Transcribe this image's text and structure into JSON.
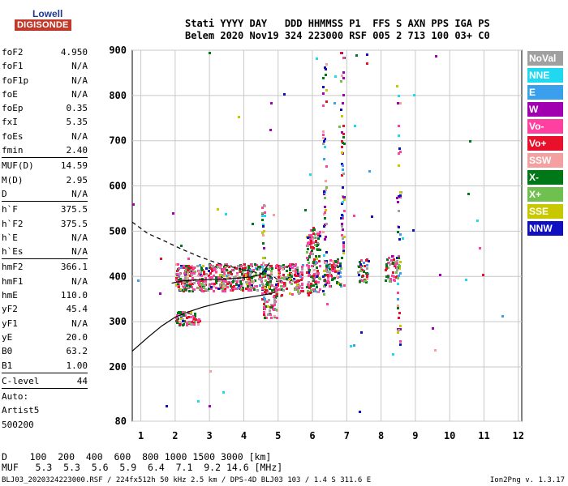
{
  "logo": {
    "brand": "Lowell",
    "sub": "DIGISONDE"
  },
  "header": {
    "line1": "Stati YYYY DAY   DDD HHMMSS P1  FFS S AXN PPS IGA PS",
    "line2": "Belem 2020 Nov19 324 223000 RSF 005 2 713 100 03+ C0"
  },
  "params": {
    "group1": [
      {
        "label": "foF2",
        "value": "4.950"
      },
      {
        "label": "foF1",
        "value": "N/A"
      },
      {
        "label": "foF1p",
        "value": "N/A"
      },
      {
        "label": "foE",
        "value": "N/A"
      },
      {
        "label": "foEp",
        "value": "0.35"
      },
      {
        "label": "fxI",
        "value": "5.35"
      },
      {
        "label": "foEs",
        "value": "N/A"
      },
      {
        "label": "fmin",
        "value": "2.40"
      }
    ],
    "group2": [
      {
        "label": "MUF(D)",
        "value": "14.59"
      },
      {
        "label": "M(D)",
        "value": "2.95"
      },
      {
        "label": "D",
        "value": "N/A"
      }
    ],
    "group3": [
      {
        "label": "h`F",
        "value": "375.5"
      },
      {
        "label": "h`F2",
        "value": "375.5"
      },
      {
        "label": "h`E",
        "value": "N/A"
      },
      {
        "label": "h`Es",
        "value": "N/A"
      }
    ],
    "group4": [
      {
        "label": "hmF2",
        "value": "366.1"
      },
      {
        "label": "hmF1",
        "value": "N/A"
      },
      {
        "label": "hmE",
        "value": "110.0"
      },
      {
        "label": "yF2",
        "value": "45.4"
      },
      {
        "label": "yF1",
        "value": "N/A"
      },
      {
        "label": "yE",
        "value": "20.0"
      },
      {
        "label": "B0",
        "value": "63.2"
      },
      {
        "label": "B1",
        "value": "1.00"
      }
    ],
    "group5": [
      {
        "label": "C-level",
        "value": "44"
      }
    ],
    "group6": [
      "Auto:",
      "Artist5",
      "500200"
    ]
  },
  "legend": [
    {
      "label": "NoVal",
      "color": "#a0a0a0"
    },
    {
      "label": "NNE",
      "color": "#20d8f0"
    },
    {
      "label": "E",
      "color": "#3aa0ee"
    },
    {
      "label": "W",
      "color": "#a000b0"
    },
    {
      "label": "Vo-",
      "color": "#ff40a0"
    },
    {
      "label": "Vo+",
      "color": "#e8102a"
    },
    {
      "label": "SSW",
      "color": "#f4a0a0"
    },
    {
      "label": "X-",
      "color": "#007818"
    },
    {
      "label": "X+",
      "color": "#70c050"
    },
    {
      "label": "SSE",
      "color": "#c8c800"
    },
    {
      "label": "NNW",
      "color": "#1010c0"
    }
  ],
  "footer": {
    "line1": "D    100  200  400  600  800 1000 1500 3000 [km]",
    "line2": "MUF   5.3  5.3  5.6  5.9  6.4  7.1  9.2 14.6 [MHz]",
    "file": "BLJ03_2020324223000.RSF / 224fx512h 50 kHz 2.5 km / DPS-4D BLJ03 103 / 1.4 S 311.6 E",
    "version": "Ion2Png v. 1.3.17"
  },
  "chart_data": {
    "type": "scatter",
    "x_ticks": [
      1,
      2,
      3,
      4,
      5,
      6,
      7,
      8,
      9,
      10,
      11,
      12
    ],
    "y_ticks": [
      80,
      200,
      300,
      400,
      500,
      600,
      700,
      800,
      900
    ],
    "xlim": [
      0.75,
      12.1
    ],
    "ylim": [
      80,
      900
    ],
    "grid": true,
    "traces": [
      {
        "name": "o-trace",
        "x": [
          1.9,
          2.2,
          2.6,
          3.0,
          3.4,
          3.8,
          4.2,
          4.5,
          4.75
        ],
        "y": [
          385,
          390,
          392,
          393,
          394,
          396,
          399,
          404,
          430
        ]
      },
      {
        "name": "x-trace",
        "x": [
          0.75,
          1.2,
          1.6,
          2.0,
          2.4,
          2.8,
          3.2,
          3.6,
          4.0,
          4.4,
          4.8,
          4.9
        ],
        "y": [
          235,
          265,
          290,
          310,
          322,
          332,
          340,
          347,
          352,
          357,
          362,
          366
        ]
      },
      {
        "name": "profile",
        "x": [
          0.75,
          1.2,
          1.7,
          2.2,
          2.7,
          3.2,
          3.7,
          4.2,
          4.6,
          4.9,
          4.95
        ],
        "y": [
          520,
          495,
          478,
          460,
          444,
          430,
          420,
          412,
          404,
          398,
          395
        ]
      }
    ],
    "clusters": [
      {
        "x": [
          2.0,
          4.8
        ],
        "y": [
          370,
          430
        ],
        "n": 520
      },
      {
        "x": [
          2.0,
          2.7
        ],
        "y": [
          295,
          325
        ],
        "n": 70
      },
      {
        "x": [
          4.5,
          4.95
        ],
        "y": [
          310,
          380
        ],
        "n": 60
      },
      {
        "x": [
          4.9,
          5.7
        ],
        "y": [
          360,
          430
        ],
        "n": 140
      },
      {
        "x": [
          5.8,
          6.2
        ],
        "y": [
          360,
          510
        ],
        "n": 140
      },
      {
        "x": [
          6.3,
          6.8
        ],
        "y": [
          380,
          440
        ],
        "n": 90
      },
      {
        "x": [
          7.3,
          7.6
        ],
        "y": [
          390,
          440
        ],
        "n": 40
      },
      {
        "x": [
          8.1,
          8.5
        ],
        "y": [
          390,
          450
        ],
        "n": 50
      }
    ],
    "columns": [
      {
        "x": 6.33,
        "y": [
          360,
          900
        ],
        "n": 45
      },
      {
        "x": 6.85,
        "y": [
          380,
          900
        ],
        "n": 55
      },
      {
        "x": 8.5,
        "y": [
          250,
          810
        ],
        "n": 40
      },
      {
        "x": 4.55,
        "y": [
          320,
          580
        ],
        "n": 25
      }
    ],
    "sparse": 60
  }
}
